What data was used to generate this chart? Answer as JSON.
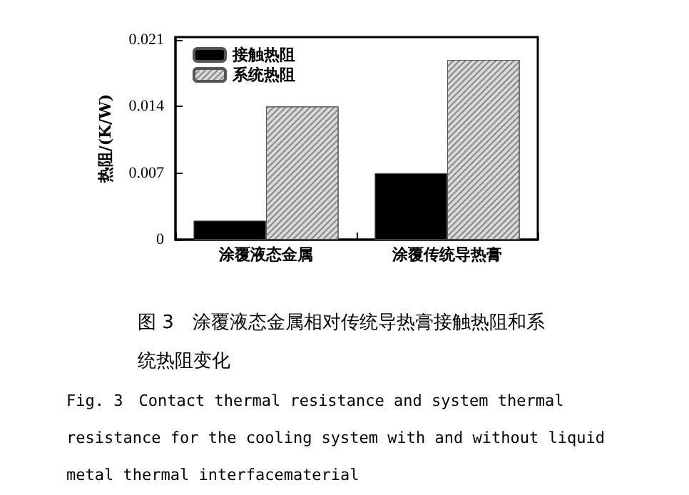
{
  "chart_data": {
    "type": "bar",
    "ylabel": "热阻/(K/W)",
    "categories": [
      "涂覆液态金属",
      "涂覆传统导热膏"
    ],
    "series": [
      {
        "name": "接触热阻",
        "color": "#000000",
        "values": [
          0.002,
          0.007
        ]
      },
      {
        "name": "系统热阻",
        "color": "#d9d9d9",
        "values": [
          0.014,
          0.0189
        ]
      }
    ],
    "ylim": [
      0,
      0.0213
    ],
    "yticks": [
      0,
      0.007,
      0.014,
      0.021
    ],
    "grid": false,
    "legend": "top left",
    "annotations": [
      "图 3　涂覆液态金属相对传统导热膏接触热阻和系统热阻变化",
      "Fig. 3　Contact thermal resistance and system thermal resistance for the cooling system with and without liquid metal thermal interfacematerial"
    ]
  }
}
